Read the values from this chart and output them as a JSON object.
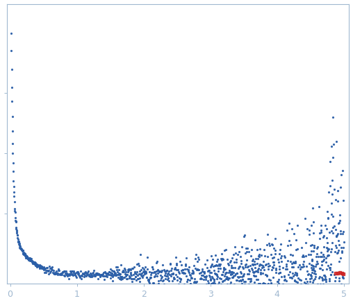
{
  "title": "",
  "xlabel": "",
  "ylabel": "",
  "xlim": [
    -0.05,
    5.08
  ],
  "x_ticks": [
    0,
    1,
    2,
    3,
    4,
    5
  ],
  "dot_color": "#2b5fa8",
  "error_color": "#b0cce8",
  "background_color": "#ffffff",
  "axis_color": "#a0b8d0",
  "tick_color": "#a0b8d0",
  "q_min": 0.015,
  "q_max": 5.0
}
